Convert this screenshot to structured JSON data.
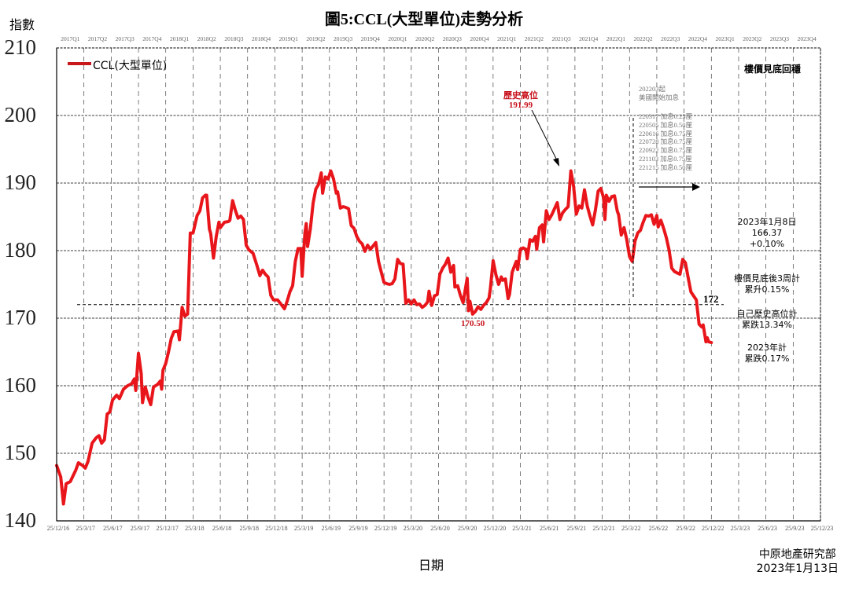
{
  "page": {
    "title": "圖5:CCL(大型單位)走勢分析",
    "y_axis_label": "指數",
    "x_axis_label": "日期",
    "source_org": "中原地產研究部",
    "source_date": "2023年1月13日"
  },
  "legend": {
    "label": "CCL(大型單位)",
    "color": "#e8161b"
  },
  "annotations": {
    "trend_note": "樓價見底回穩",
    "peak_label": "歷史高位",
    "peak_value": "191.99",
    "trough_value": "170.50",
    "support_value": "172",
    "rate_hike_header_1": "202203起",
    "rate_hike_header_2": "美國開始加息",
    "rate_hikes": [
      {
        "date": "220317",
        "text": "加息0.25厘"
      },
      {
        "date": "220505",
        "text": "加息0.50厘"
      },
      {
        "date": "220616",
        "text": "加息0.75厘"
      },
      {
        "date": "220728",
        "text": "加息0.75厘"
      },
      {
        "date": "220922",
        "text": "加息0.75厘"
      },
      {
        "date": "221103",
        "text": "加息0.75厘"
      },
      {
        "date": "221215",
        "text": "加息0.50厘"
      }
    ],
    "latest_date": "2023年1月8日",
    "latest_value": "166.37",
    "latest_change": "+0.10%",
    "rebound_line1": "樓價見底後3周計",
    "rebound_line2": "累升0.15%",
    "from_peak_line1": "自己歷史高位計",
    "from_peak_line2": "累跌13.34%",
    "ytd_line1": "2023年計",
    "ytd_line2": "累跌0.17%"
  },
  "chart_data": {
    "type": "line",
    "title": "圖5:CCL(大型單位)走勢分析",
    "xlabel": "日期",
    "ylabel": "指數",
    "ylim": [
      140,
      210
    ],
    "yticks": [
      210,
      200,
      190,
      180,
      170,
      160,
      150,
      140
    ],
    "grid": true,
    "legend_position": "top-left",
    "top_quarter_labels": [
      "2017Q1",
      "2017Q2",
      "2017Q3",
      "2017Q4",
      "2018Q1",
      "2018Q2",
      "2018Q3",
      "2018Q4",
      "2019Q1",
      "2019Q2",
      "2019Q3",
      "2019Q4",
      "2020Q1",
      "2020Q2",
      "2020Q3",
      "2020Q4",
      "2021Q1",
      "2021Q2",
      "2021Q3",
      "2021Q4",
      "2022Q1",
      "2022Q2",
      "2022Q3",
      "2022Q4",
      "2023Q1",
      "2023Q2",
      "2023Q3",
      "2023Q4"
    ],
    "x_tick_labels": [
      "25/12/16",
      "25/3/17",
      "25/6/17",
      "25/9/17",
      "25/12/17",
      "25/3/18",
      "25/6/18",
      "25/9/18",
      "25/12/18",
      "25/3/19",
      "25/6/19",
      "25/9/19",
      "25/12/19",
      "25/3/20",
      "25/6/20",
      "25/9/20",
      "25/12/20",
      "25/3/21",
      "25/6/21",
      "25/9/21",
      "25/12/21",
      "25/3/22",
      "25/6/22",
      "25/9/22",
      "25/12/22",
      "25/3/23",
      "25/6/23",
      "25/9/23",
      "25/12/23"
    ],
    "reference_line": 172,
    "series": [
      {
        "name": "CCL(大型單位)",
        "note": "x = quarters since 25/12/16",
        "points": [
          [
            0.0,
            148.2
          ],
          [
            0.15,
            146.5
          ],
          [
            0.25,
            142.5
          ],
          [
            0.35,
            145.5
          ],
          [
            0.5,
            145.8
          ],
          [
            0.7,
            147.5
          ],
          [
            0.8,
            148.6
          ],
          [
            0.95,
            148.2
          ],
          [
            1.05,
            147.8
          ],
          [
            1.15,
            148.8
          ],
          [
            1.3,
            151.5
          ],
          [
            1.45,
            152.3
          ],
          [
            1.55,
            152.6
          ],
          [
            1.65,
            151.5
          ],
          [
            1.75,
            152.0
          ],
          [
            1.85,
            155.8
          ],
          [
            1.95,
            156.1
          ],
          [
            2.05,
            157.9
          ],
          [
            2.2,
            158.6
          ],
          [
            2.3,
            158.1
          ],
          [
            2.45,
            159.5
          ],
          [
            2.6,
            160.0
          ],
          [
            2.75,
            160.3
          ],
          [
            2.85,
            161.0
          ],
          [
            2.9,
            159.3
          ],
          [
            3.0,
            164.8
          ],
          [
            3.1,
            161.8
          ],
          [
            3.15,
            157.5
          ],
          [
            3.25,
            159.8
          ],
          [
            3.35,
            158.3
          ],
          [
            3.45,
            157.2
          ],
          [
            3.55,
            159.8
          ],
          [
            3.7,
            160.2
          ],
          [
            3.8,
            160.7
          ],
          [
            3.85,
            159.5
          ],
          [
            3.9,
            162.3
          ],
          [
            4.0,
            163.3
          ],
          [
            4.1,
            165.0
          ],
          [
            4.2,
            167.0
          ],
          [
            4.3,
            168.0
          ],
          [
            4.45,
            168.1
          ],
          [
            4.5,
            166.8
          ],
          [
            4.6,
            171.6
          ],
          [
            4.7,
            170.3
          ],
          [
            4.8,
            170.6
          ],
          [
            4.9,
            182.6
          ],
          [
            5.0,
            182.6
          ],
          [
            5.15,
            185.2
          ],
          [
            5.25,
            185.9
          ],
          [
            5.35,
            187.8
          ],
          [
            5.45,
            188.2
          ],
          [
            5.5,
            188.2
          ],
          [
            5.6,
            183.2
          ],
          [
            5.65,
            182.5
          ],
          [
            5.75,
            178.9
          ],
          [
            5.85,
            182.1
          ],
          [
            5.95,
            184.2
          ],
          [
            6.0,
            183.4
          ],
          [
            6.15,
            184.2
          ],
          [
            6.3,
            184.3
          ],
          [
            6.35,
            184.5
          ],
          [
            6.45,
            187.4
          ],
          [
            6.55,
            186.0
          ],
          [
            6.65,
            184.8
          ],
          [
            6.75,
            185.1
          ],
          [
            6.85,
            184.6
          ],
          [
            6.95,
            180.8
          ],
          [
            7.05,
            180.1
          ],
          [
            7.2,
            179.6
          ],
          [
            7.35,
            177.7
          ],
          [
            7.45,
            176.3
          ],
          [
            7.55,
            177.1
          ],
          [
            7.65,
            176.5
          ],
          [
            7.75,
            176.1
          ],
          [
            7.85,
            173.4
          ],
          [
            7.95,
            172.7
          ],
          [
            8.1,
            172.7
          ],
          [
            8.2,
            172.2
          ],
          [
            8.35,
            171.4
          ],
          [
            8.45,
            172.5
          ],
          [
            8.55,
            173.9
          ],
          [
            8.65,
            174.8
          ],
          [
            8.75,
            178.4
          ],
          [
            8.85,
            180.3
          ],
          [
            8.95,
            180.3
          ],
          [
            9.0,
            176.2
          ],
          [
            9.1,
            182.6
          ],
          [
            9.15,
            184.0
          ],
          [
            9.2,
            180.6
          ],
          [
            9.3,
            183.2
          ],
          [
            9.4,
            187.0
          ],
          [
            9.5,
            189.1
          ],
          [
            9.6,
            189.8
          ],
          [
            9.7,
            191.5
          ],
          [
            9.75,
            188.5
          ],
          [
            9.85,
            190.9
          ],
          [
            9.95,
            190.6
          ],
          [
            10.05,
            191.8
          ],
          [
            10.15,
            190.6
          ],
          [
            10.25,
            188.5
          ],
          [
            10.3,
            188.7
          ],
          [
            10.4,
            186.3
          ],
          [
            10.5,
            186.5
          ],
          [
            10.6,
            186.4
          ],
          [
            10.7,
            186.2
          ],
          [
            10.8,
            183.7
          ],
          [
            10.9,
            183.3
          ],
          [
            11.0,
            182.1
          ],
          [
            11.1,
            181.4
          ],
          [
            11.2,
            181.0
          ],
          [
            11.3,
            179.9
          ],
          [
            11.4,
            180.8
          ],
          [
            11.5,
            180.2
          ],
          [
            11.6,
            180.7
          ],
          [
            11.7,
            181.2
          ],
          [
            11.8,
            178.4
          ],
          [
            11.9,
            176.8
          ],
          [
            12.0,
            175.3
          ],
          [
            12.1,
            175.1
          ],
          [
            12.2,
            175.0
          ],
          [
            12.3,
            175.1
          ],
          [
            12.4,
            175.8
          ],
          [
            12.5,
            178.7
          ],
          [
            12.6,
            178.1
          ],
          [
            12.7,
            178.0
          ],
          [
            12.8,
            172.2
          ],
          [
            12.9,
            172.7
          ],
          [
            13.0,
            172.1
          ],
          [
            13.1,
            172.7
          ],
          [
            13.2,
            172.0
          ],
          [
            13.3,
            172.1
          ],
          [
            13.4,
            171.6
          ],
          [
            13.5,
            171.9
          ],
          [
            13.6,
            172.4
          ],
          [
            13.65,
            174.0
          ],
          [
            13.75,
            171.9
          ],
          [
            13.85,
            173.3
          ],
          [
            13.95,
            173.5
          ],
          [
            14.05,
            176.5
          ],
          [
            14.15,
            177.4
          ],
          [
            14.25,
            178.0
          ],
          [
            14.35,
            178.9
          ],
          [
            14.45,
            176.8
          ],
          [
            14.55,
            177.8
          ],
          [
            14.6,
            174.6
          ],
          [
            14.7,
            174.8
          ],
          [
            14.8,
            173.4
          ],
          [
            14.9,
            172.3
          ],
          [
            14.95,
            173.5
          ],
          [
            15.05,
            175.9
          ],
          [
            15.1,
            171.1
          ],
          [
            15.15,
            172.5
          ],
          [
            15.25,
            170.6
          ],
          [
            15.35,
            171.0
          ],
          [
            15.45,
            171.7
          ],
          [
            15.55,
            171.3
          ],
          [
            15.65,
            171.9
          ],
          [
            15.75,
            172.3
          ],
          [
            15.85,
            173.0
          ],
          [
            15.9,
            174.4
          ],
          [
            16.0,
            178.5
          ],
          [
            16.1,
            176.5
          ],
          [
            16.2,
            175.0
          ],
          [
            16.3,
            176.1
          ],
          [
            16.35,
            175.6
          ],
          [
            16.45,
            175.8
          ],
          [
            16.55,
            172.9
          ],
          [
            16.6,
            173.5
          ],
          [
            16.7,
            176.8
          ],
          [
            16.8,
            177.9
          ],
          [
            16.85,
            178.4
          ],
          [
            16.9,
            177.2
          ],
          [
            17.0,
            180.2
          ],
          [
            17.1,
            180.4
          ],
          [
            17.2,
            180.2
          ],
          [
            17.25,
            178.8
          ],
          [
            17.35,
            181.6
          ],
          [
            17.45,
            181.4
          ],
          [
            17.55,
            182.1
          ],
          [
            17.6,
            180.2
          ],
          [
            17.7,
            183.4
          ],
          [
            17.8,
            183.8
          ],
          [
            17.85,
            181.3
          ],
          [
            17.95,
            185.9
          ],
          [
            18.05,
            184.6
          ],
          [
            18.15,
            185.3
          ],
          [
            18.25,
            186.2
          ],
          [
            18.35,
            187.1
          ],
          [
            18.45,
            184.6
          ],
          [
            18.55,
            185.6
          ],
          [
            18.65,
            186.1
          ],
          [
            18.75,
            186.5
          ],
          [
            18.85,
            191.8
          ],
          [
            18.95,
            189.5
          ],
          [
            19.05,
            185.4
          ],
          [
            19.15,
            186.6
          ],
          [
            19.25,
            186.3
          ],
          [
            19.35,
            189.0
          ],
          [
            19.45,
            186.6
          ],
          [
            19.55,
            185.1
          ],
          [
            19.65,
            183.8
          ],
          [
            19.75,
            186.0
          ],
          [
            19.85,
            188.8
          ],
          [
            19.95,
            189.2
          ],
          [
            20.05,
            187.8
          ],
          [
            20.1,
            184.6
          ],
          [
            20.15,
            188.2
          ],
          [
            20.25,
            187.3
          ],
          [
            20.35,
            188.0
          ],
          [
            20.45,
            188.1
          ],
          [
            20.55,
            185.9
          ],
          [
            20.6,
            185.3
          ],
          [
            20.7,
            182.3
          ],
          [
            20.8,
            183.4
          ],
          [
            20.9,
            181.6
          ],
          [
            21.0,
            179.1
          ],
          [
            21.1,
            178.4
          ],
          [
            21.2,
            181.4
          ],
          [
            21.3,
            182.6
          ],
          [
            21.4,
            183.0
          ],
          [
            21.5,
            184.2
          ],
          [
            21.6,
            185.2
          ],
          [
            21.7,
            185.1
          ],
          [
            21.8,
            185.3
          ],
          [
            21.9,
            183.9
          ],
          [
            22.0,
            185.2
          ],
          [
            22.05,
            183.5
          ],
          [
            22.15,
            184.5
          ],
          [
            22.25,
            183.3
          ],
          [
            22.35,
            181.9
          ],
          [
            22.45,
            180.1
          ],
          [
            22.55,
            177.4
          ],
          [
            22.65,
            176.9
          ],
          [
            22.75,
            176.7
          ],
          [
            22.85,
            176.5
          ],
          [
            22.95,
            178.7
          ],
          [
            23.05,
            178.2
          ],
          [
            23.15,
            176.0
          ],
          [
            23.25,
            173.9
          ],
          [
            23.35,
            173.3
          ],
          [
            23.45,
            172.7
          ],
          [
            23.55,
            169.1
          ],
          [
            23.65,
            168.7
          ],
          [
            23.7,
            169.0
          ],
          [
            23.8,
            166.5
          ],
          [
            23.85,
            167.1
          ],
          [
            23.9,
            166.5
          ],
          [
            24.0,
            166.4
          ]
        ]
      }
    ]
  }
}
